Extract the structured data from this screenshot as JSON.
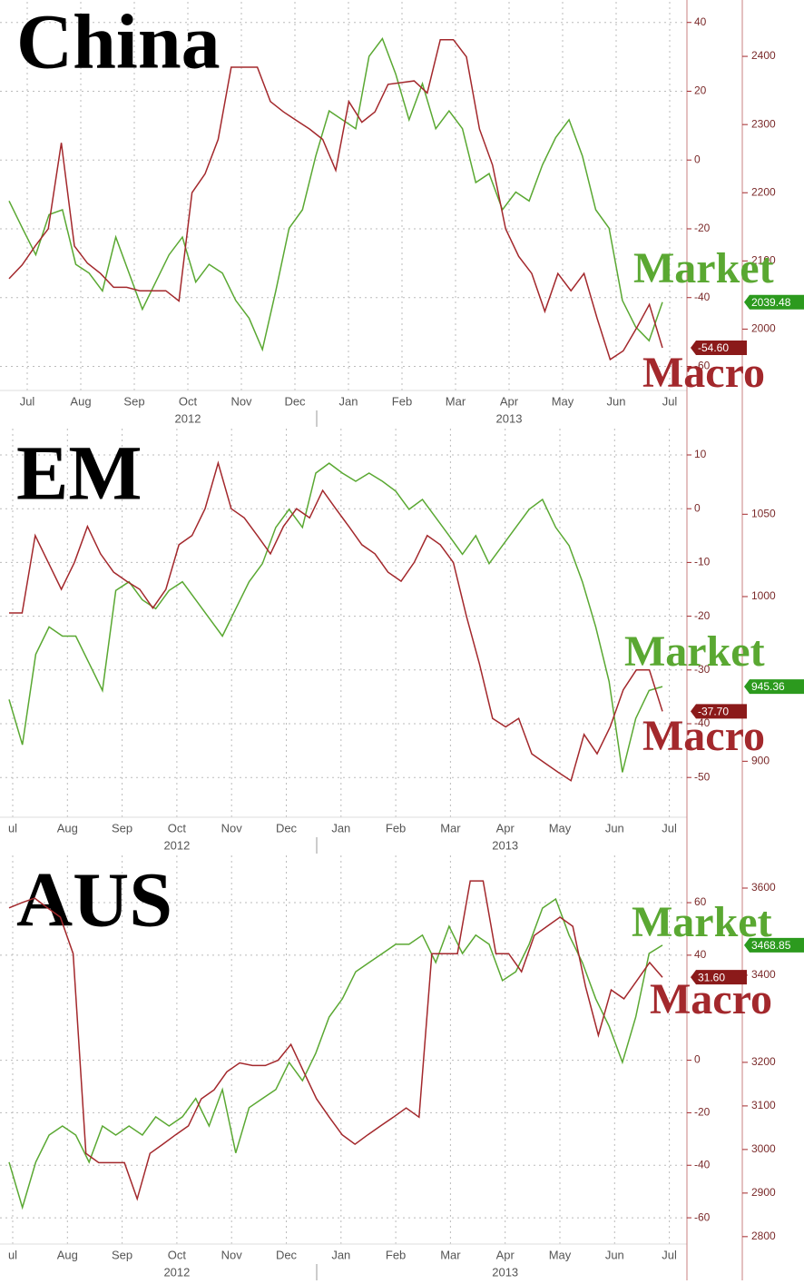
{
  "chart_data": [
    {
      "type": "line",
      "title": "China",
      "months": [
        "Jul",
        "Aug",
        "Sep",
        "Oct",
        "Nov",
        "Dec",
        "Jan",
        "Feb",
        "Mar",
        "Apr",
        "May",
        "Jun",
        "Jul"
      ],
      "years": [
        "2012",
        "2013"
      ],
      "ylim": [
        -67,
        46
      ],
      "yticks": [
        40,
        20,
        0,
        -20,
        -40,
        -60
      ],
      "y2lim": [
        1910,
        2480
      ],
      "y2ticks": [
        2400,
        2300,
        2200,
        2100,
        2000
      ],
      "grid": true,
      "series": [
        {
          "name": "Market",
          "color": "#5aa832",
          "axis": "y2",
          "last_value_label": "2039.48",
          "values": [
            2188,
            2148,
            2109,
            2168,
            2175,
            2095,
            2082,
            2056,
            2135,
            2082,
            2029,
            2069,
            2109,
            2135,
            2069,
            2095,
            2082,
            2042,
            2016,
            1970,
            2056,
            2148,
            2175,
            2254,
            2320,
            2307,
            2294,
            2400,
            2426,
            2374,
            2307,
            2360,
            2294,
            2320,
            2294,
            2215,
            2228,
            2175,
            2201,
            2188,
            2241,
            2281,
            2307,
            2254,
            2175,
            2148,
            2042,
            2003,
            1983,
            2039.48
          ]
        },
        {
          "name": "Macro",
          "color": "#a3282c",
          "axis": "y",
          "last_value_label": "-54.60",
          "values": [
            -34.5,
            -30.5,
            -25,
            -20,
            5,
            -25,
            -30,
            -33,
            -37,
            -37,
            -38,
            -38,
            -38,
            -41,
            -9.5,
            -4,
            6,
            27,
            27,
            27,
            17,
            14,
            11.5,
            9,
            6,
            -3,
            17,
            11,
            14,
            22,
            22.5,
            23,
            19.5,
            35,
            35,
            30,
            9,
            -1.5,
            -20,
            -28,
            -33,
            -44,
            -33,
            -38,
            -33,
            -46,
            -58,
            -55.5,
            -49,
            -42,
            -54.6
          ]
        }
      ]
    },
    {
      "type": "line",
      "title": "EM",
      "months": [
        "ul",
        "Aug",
        "Sep",
        "Oct",
        "Nov",
        "Dec",
        "Jan",
        "Feb",
        "Mar",
        "Apr",
        "May",
        "Jun",
        "Jul"
      ],
      "years": [
        "2012",
        "2013"
      ],
      "ylim": [
        -57.4,
        14.9
      ],
      "yticks": [
        10,
        0,
        -10,
        -20,
        -30,
        -40,
        -50
      ],
      "y2lim": [
        866,
        1102
      ],
      "y2ticks": [
        1050,
        1000,
        900
      ],
      "grid": true,
      "series": [
        {
          "name": "Market",
          "color": "#5aa832",
          "axis": "y2",
          "last_value_label": "945.36",
          "values": [
            937.5,
            910,
            965,
            981.6,
            976,
            976,
            959.5,
            943,
            1003.7,
            1009,
            998,
            992.6,
            1003.7,
            1009,
            998,
            987,
            976,
            992.6,
            1009,
            1020,
            1042,
            1053,
            1042,
            1075,
            1081,
            1075,
            1070,
            1075,
            1070,
            1064,
            1053,
            1059,
            1048,
            1037,
            1025.7,
            1037,
            1020,
            1031,
            1042,
            1053,
            1059,
            1042,
            1031,
            1009,
            981.6,
            948.5,
            893.3,
            926,
            943,
            945.36
          ]
        },
        {
          "name": "Macro",
          "color": "#a3282c",
          "axis": "y",
          "last_value_label": "-37.70",
          "values": [
            -19.4,
            -19.4,
            -5,
            -10,
            -15,
            -10,
            -3.3,
            -8.4,
            -11.8,
            -13.5,
            -15,
            -18.5,
            -15,
            -6.7,
            -5,
            0,
            8.5,
            0,
            -1.7,
            -5,
            -8.4,
            -3.3,
            0,
            -1.7,
            3.4,
            0,
            -3.3,
            -6.7,
            -8.4,
            -11.8,
            -13.5,
            -10,
            -5,
            -6.7,
            -10,
            -20,
            -28.9,
            -39,
            -40.6,
            -39,
            -45.6,
            -47.3,
            -49,
            -50.6,
            -42,
            -45.6,
            -40.6,
            -33.7,
            -30,
            -30,
            -37.7
          ]
        }
      ]
    },
    {
      "type": "line",
      "title": "AUS",
      "months": [
        "ul",
        "Aug",
        "Sep",
        "Oct",
        "Nov",
        "Dec",
        "Jan",
        "Feb",
        "Mar",
        "Apr",
        "May",
        "Jun",
        "Jul"
      ],
      "years": [
        "2012",
        "2013"
      ],
      "ylim": [
        -70,
        78
      ],
      "yticks": [
        60,
        40,
        0,
        -20,
        -40,
        -60
      ],
      "y2lim": [
        2783,
        3675
      ],
      "y2ticks": [
        3600,
        3400,
        3200,
        3100,
        3000,
        2900,
        2800
      ],
      "grid": true,
      "series": [
        {
          "name": "Market",
          "color": "#5aa832",
          "axis": "y2",
          "last_value_label": "3468.85",
          "values": [
            2971,
            2867,
            2971,
            3033,
            3054,
            3033,
            2971,
            3054,
            3033,
            3054,
            3033,
            3075,
            3054,
            3075,
            3117,
            3054,
            3137.5,
            2992,
            3096,
            3117,
            3137.5,
            3200,
            3158,
            3221,
            3304,
            3346,
            3408,
            3429,
            3450,
            3471,
            3471,
            3492,
            3429,
            3512.5,
            3450,
            3492,
            3471,
            3387.5,
            3408,
            3471,
            3554,
            3575,
            3492,
            3429,
            3346,
            3283,
            3200,
            3304,
            3450,
            3468.85
          ]
        },
        {
          "name": "Macro",
          "color": "#a3282c",
          "axis": "y",
          "last_value_label": "31.60",
          "values": [
            58,
            60,
            61.7,
            58,
            54.5,
            40.6,
            -35.5,
            -39,
            -39,
            -39,
            -52.8,
            -35.5,
            -32,
            -28.4,
            -25,
            -14.7,
            -11.3,
            -4.4,
            -1,
            -2,
            -2,
            0,
            6,
            -4.4,
            -14.7,
            -21.7,
            -28.4,
            -32,
            -28.4,
            -25,
            -21.7,
            -18.2,
            -21.7,
            40.6,
            40.6,
            40.6,
            68.3,
            68.3,
            40.6,
            40.6,
            33.7,
            47.5,
            51,
            54.5,
            51,
            28,
            9.5,
            26.8,
            23.4,
            30.3,
            37.2,
            31.6
          ]
        }
      ]
    }
  ]
}
